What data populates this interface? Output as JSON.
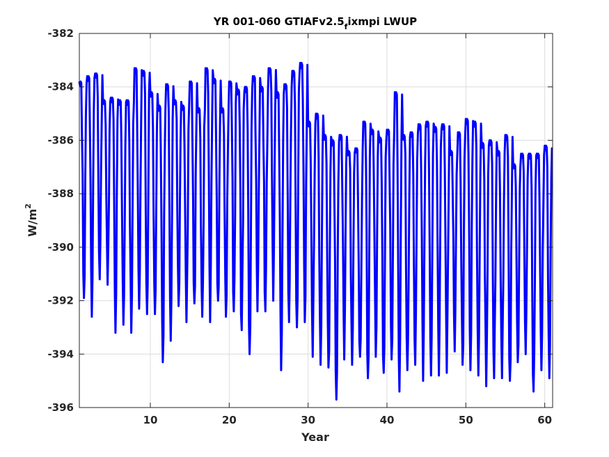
{
  "chart_data": {
    "type": "line",
    "title_main": "YR 001-060 GTIAFv2.5",
    "title_sub": "f",
    "title_tail": "ixmpi LWUP",
    "xlabel": "Year",
    "ylabel_base": "W/m",
    "ylabel_sup": "2",
    "xlim": [
      1,
      61
    ],
    "ylim": [
      -396,
      -382
    ],
    "xticks": [
      10,
      20,
      30,
      40,
      50,
      60
    ],
    "yticks": [
      -396,
      -394,
      -392,
      -390,
      -388,
      -386,
      -384,
      -382
    ],
    "grid": true,
    "series": [
      {
        "color": "#0000ff",
        "sampling": "monthly",
        "start_x": 1,
        "annual_max": [
          -383.8,
          -383.6,
          -383.5,
          -384.5,
          -384.4,
          -384.5,
          -384.5,
          -383.3,
          -383.4,
          -384.2,
          -384.7,
          -383.9,
          -384.5,
          -384.7,
          -383.8,
          -384.8,
          -383.3,
          -383.7,
          -384.8,
          -383.8,
          -384.1,
          -384.0,
          -383.6,
          -384.0,
          -383.3,
          -384.2,
          -383.9,
          -383.4,
          -383.1,
          -385.3,
          -385.0,
          -385.8,
          -386.0,
          -385.8,
          -386.4,
          -386.3,
          -385.3,
          -385.6,
          -385.9,
          -385.6,
          -384.2,
          -385.8,
          -385.7,
          -385.4,
          -385.3,
          -385.5,
          -385.4,
          -386.4,
          -385.7,
          -385.2,
          -385.3,
          -386.1,
          -386.0,
          -386.4,
          -385.8,
          -386.9,
          -386.5,
          -386.5,
          -386.5,
          -386.2
        ],
        "annual_min": [
          -391.9,
          -392.6,
          -391.2,
          -391.4,
          -393.2,
          -392.9,
          -393.2,
          -392.3,
          -392.5,
          -392.5,
          -394.3,
          -393.5,
          -392.2,
          -392.8,
          -392.1,
          -392.6,
          -392.8,
          -392.0,
          -392.6,
          -392.4,
          -393.1,
          -394.0,
          -392.4,
          -392.4,
          -392.0,
          -394.6,
          -392.8,
          -393.0,
          -392.8,
          -394.1,
          -394.4,
          -394.5,
          -395.7,
          -394.2,
          -394.4,
          -394.1,
          -394.9,
          -394.1,
          -394.7,
          -394.2,
          -395.4,
          -394.6,
          -394.4,
          -395.0,
          -394.8,
          -394.8,
          -394.7,
          -393.9,
          -394.4,
          -394.6,
          -394.8,
          -395.2,
          -394.9,
          -394.9,
          -395.0,
          -394.3,
          -394.0,
          -395.4,
          -394.6,
          -394.9
        ]
      }
    ]
  }
}
